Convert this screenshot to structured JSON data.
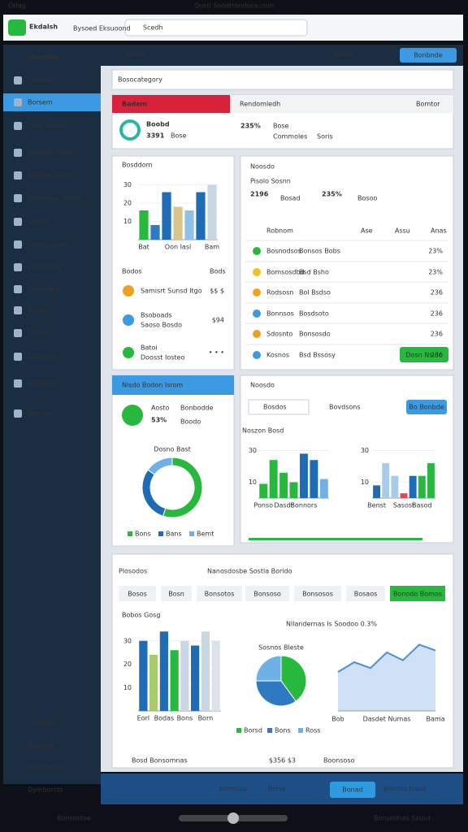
{
  "status_bar": {
    "carrier": "Orlag",
    "title": "Qusd Sondtrondsoa.com"
  },
  "header": {
    "logo": "Ekdalsh",
    "logo_sub": "Bysoed Eksuoond",
    "search": "Scedh"
  },
  "sidebar": {
    "brand": "Stonoda",
    "items": [
      "Scoobd",
      "Borsem",
      "Sons Bomlan",
      "Borsons Icons",
      "Nartsga Bonts",
      "Danslloge Slants",
      "Sobde",
      "Conoticlaltes",
      "Eonoleling",
      "Donomed",
      "Bnnte",
      "Bonrts",
      "Bsobonts",
      "Oritingle",
      "Dosndon"
    ],
    "footer": [
      "Conlogia",
      "Bsmiata",
      "Domortoria",
      "Dymborcts"
    ]
  },
  "topnav": {
    "left": "Nalsos",
    "right": "Nabos",
    "button": "Bonbnde"
  },
  "panel": {
    "title": "Bosocategory"
  },
  "summary": {
    "tag": "Badem",
    "heading": "Rendomledh",
    "stat1_label": "Boobd",
    "stat1_value": "3391",
    "stat1_note": "Bose",
    "stat2_value": "235%",
    "stat2_label": "Bose",
    "stat2_links": [
      "Commoles",
      "Soris"
    ],
    "right": "Bomtor"
  },
  "list": {
    "header": [
      "Bodos",
      "Bods"
    ],
    "items": [
      {
        "title": "Samisrt Sunsd Itgo",
        "value": "$$ $"
      },
      {
        "title": "Bsoboads",
        "sub": "Saoso Bosdo",
        "value": "$94"
      },
      {
        "title": "Batoi",
        "sub": "Doosst Iosteo",
        "value": "• • •"
      }
    ]
  },
  "table": {
    "title": "Noosdo",
    "subtitle": "Pisolo Sosnn",
    "stat1": "2196",
    "stat1_note": "Bosad",
    "stat2": "235%",
    "stat2_note": "Bosoo",
    "headers": [
      "Robnom",
      "Ase",
      "Assu",
      "Anas"
    ],
    "rows": [
      [
        "Bosnodsos",
        "Bonsos Bobs",
        "23%"
      ],
      [
        "Bomsosdbd",
        "Bsd Bsho",
        "23%"
      ],
      [
        "Rodsosn",
        "Bol Bsdso",
        "236"
      ],
      [
        "Bonnsos",
        "Bosdsoto",
        "236"
      ],
      [
        "Sdosnto",
        "Bonsosdo",
        "236"
      ],
      [
        "Kosnos",
        "Bsd Bssosy",
        "236"
      ]
    ],
    "button": "Dosn Nsido"
  },
  "donut_card": {
    "header": "Nisdo Bodon Isrom",
    "label": "Aosto",
    "value": "53%",
    "note": "Bonbodde",
    "note2": "Boodo"
  },
  "mid_card": {
    "title": "Noosdo",
    "dropdown": "Bosdos",
    "filter": "Bovdsons",
    "button": "Bo Bonbde"
  },
  "bottom_card": {
    "title": "Plosodos",
    "subtitle": "Nanosdosbe Sostla Borido",
    "tabs": [
      "Bosos",
      "Bosn",
      "Bonsotos",
      "Bonsoso",
      "Bonsosos",
      "Bosaos",
      "Bonodo Bomos"
    ],
    "heading": "Nllandernas Is Soodoo 0.3%",
    "foot_left": "Bosd Bonsomnas",
    "foot_value": "$356 $3",
    "foot_right": "Boonsoso"
  },
  "bottom_bar": {
    "items": [
      "Bonsoso",
      "Bona"
    ],
    "button": "Bonad",
    "note": "Bosdos Iosna"
  },
  "nav_bar": {
    "left": "Bonsostoe",
    "right": "Bonsodnas Ssusd"
  },
  "chart_data": [
    {
      "type": "bar",
      "title": "Bosddom",
      "categories": [
        "Bat",
        null,
        null,
        "Oon Iasl",
        null,
        null,
        "Bam"
      ],
      "values": [
        16,
        8,
        26,
        18,
        16,
        26,
        30
      ],
      "colors": [
        "#27b83e",
        "#2e7bc4",
        "#1f6bb5",
        "#d8c48a",
        "#8ec0e8",
        "#1f6bb5",
        "#c9d6e3"
      ],
      "ylim": [
        0,
        40
      ],
      "yticks": [
        10,
        20,
        30
      ]
    },
    {
      "type": "pie",
      "title": "Dosno Bast",
      "categories": [
        "Bons",
        "Bans",
        "Bemt"
      ],
      "values": [
        55,
        30,
        15
      ],
      "colors": [
        "#27b83e",
        "#1f6bb5",
        "#6fb0e6"
      ]
    },
    {
      "type": "bar",
      "title": "Noszon Bosd",
      "categories": [
        "Ponso",
        null,
        "Dasdt",
        null,
        "Bonnors",
        null,
        null
      ],
      "values": [
        9,
        24,
        16,
        10,
        28,
        24,
        12
      ],
      "colors": [
        "#27b83e",
        "#27b83e",
        "#27b83e",
        "#27b83e",
        "#1f6bb5",
        "#1f6bb5",
        "#6fb0e6"
      ],
      "ylim": [
        0,
        40
      ],
      "yticks": [
        10,
        30
      ]
    },
    {
      "type": "bar",
      "categories": [
        "Benst",
        null,
        null,
        "Sasost",
        null,
        "Basod",
        null
      ],
      "values": [
        8,
        22,
        14,
        3,
        14,
        14,
        22
      ],
      "colors": [
        "#1f6bb5",
        "#a9cbe8",
        "#a9cbe8",
        "#e04a4a",
        "#1f6bb5",
        "#27b83e",
        "#27b83e"
      ],
      "ylim": [
        0,
        40
      ],
      "yticks": [
        10,
        30
      ]
    },
    {
      "type": "bar",
      "title": "Bobos Gosg",
      "categories": [
        "Eorl",
        null,
        "Bodas",
        null,
        "Bons",
        null,
        "Born",
        null
      ],
      "values": [
        30,
        24,
        34,
        26,
        30,
        28,
        34,
        30
      ],
      "colors": [
        "#1f6bb5",
        "#a9c96a",
        "#1f6bb5",
        "#27b83e",
        "#c9d6e3",
        "#1f6bb5",
        "#c9d6e3",
        "#dbe3ea"
      ],
      "ylim": [
        0,
        40
      ],
      "yticks": [
        10,
        20,
        30
      ]
    },
    {
      "type": "pie",
      "title": "Sosnos Bleste",
      "categories": [
        "Borsd",
        "Bons",
        "Ross"
      ],
      "values": [
        40,
        35,
        25
      ],
      "colors": [
        "#27b83e",
        "#2e7bc4",
        "#6fb0e6"
      ]
    },
    {
      "type": "line",
      "categories": [
        "Bob",
        null,
        null,
        "Dasdet Numas",
        null,
        null,
        "Bama"
      ],
      "values": [
        20,
        25,
        22,
        30,
        26,
        34,
        31
      ],
      "color": "#4a8fd6"
    }
  ]
}
